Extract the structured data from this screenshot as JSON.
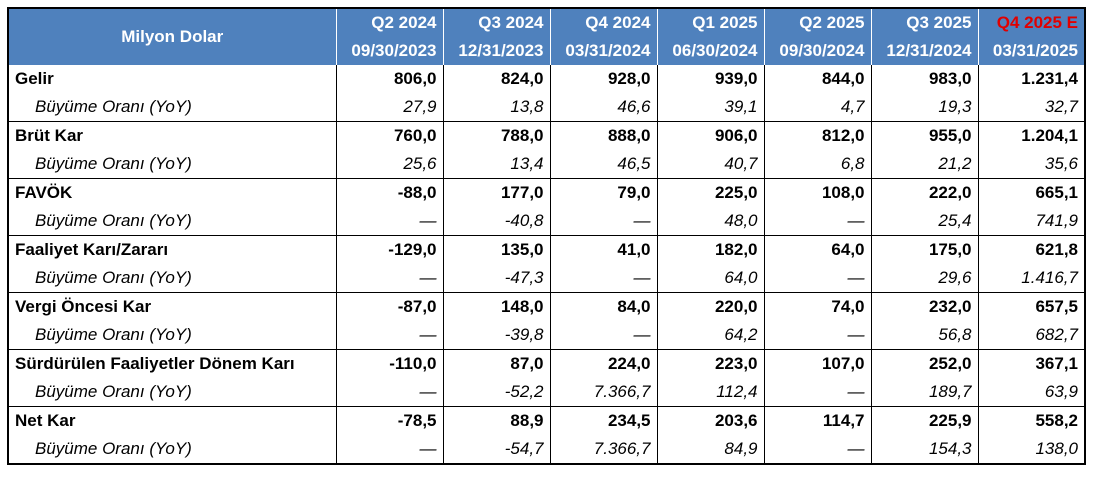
{
  "header": {
    "corner_label": "Milyon Dolar",
    "columns": [
      {
        "quarter": "Q2 2024",
        "date": "09/30/2023",
        "estimate": false
      },
      {
        "quarter": "Q3 2024",
        "date": "12/31/2023",
        "estimate": false
      },
      {
        "quarter": "Q4 2024",
        "date": "03/31/2024",
        "estimate": false
      },
      {
        "quarter": "Q1 2025",
        "date": "06/30/2024",
        "estimate": false
      },
      {
        "quarter": "Q2 2025",
        "date": "09/30/2024",
        "estimate": false
      },
      {
        "quarter": "Q3 2025",
        "date": "12/31/2024",
        "estimate": false
      },
      {
        "quarter": "Q4 2025 E",
        "date": "03/31/2025",
        "estimate": true
      }
    ],
    "estimate_color": "#e00000",
    "header_bg": "#4f81bd"
  },
  "growth_label": "Büyüme Oranı (YoY)",
  "rows": [
    {
      "label": "Gelir",
      "values": [
        "806,0",
        "824,0",
        "928,0",
        "939,0",
        "844,0",
        "983,0",
        "1.231,4"
      ],
      "growth": [
        "27,9",
        "13,8",
        "46,6",
        "39,1",
        "4,7",
        "19,3",
        "32,7"
      ]
    },
    {
      "label": "Brüt Kar",
      "values": [
        "760,0",
        "788,0",
        "888,0",
        "906,0",
        "812,0",
        "955,0",
        "1.204,1"
      ],
      "growth": [
        "25,6",
        "13,4",
        "46,5",
        "40,7",
        "6,8",
        "21,2",
        "35,6"
      ]
    },
    {
      "label": "FAVÖK",
      "values": [
        "-88,0",
        "177,0",
        "79,0",
        "225,0",
        "108,0",
        "222,0",
        "665,1"
      ],
      "growth": [
        "—",
        "-40,8",
        "—",
        "48,0",
        "—",
        "25,4",
        "741,9"
      ]
    },
    {
      "label": "Faaliyet Karı/Zararı",
      "values": [
        "-129,0",
        "135,0",
        "41,0",
        "182,0",
        "64,0",
        "175,0",
        "621,8"
      ],
      "growth": [
        "—",
        "-47,3",
        "—",
        "64,0",
        "—",
        "29,6",
        "1.416,7"
      ]
    },
    {
      "label": "Vergi Öncesi Kar",
      "values": [
        "-87,0",
        "148,0",
        "84,0",
        "220,0",
        "74,0",
        "232,0",
        "657,5"
      ],
      "growth": [
        "—",
        "-39,8",
        "—",
        "64,2",
        "—",
        "56,8",
        "682,7"
      ]
    },
    {
      "label": "Sürdürülen Faaliyetler Dönem Karı",
      "values": [
        "-110,0",
        "87,0",
        "224,0",
        "223,0",
        "107,0",
        "252,0",
        "367,1"
      ],
      "growth": [
        "—",
        "-52,2",
        "7.366,7",
        "112,4",
        "—",
        "189,7",
        "63,9"
      ]
    },
    {
      "label": "Net Kar",
      "values": [
        "-78,5",
        "88,9",
        "234,5",
        "203,6",
        "114,7",
        "225,9",
        "558,2"
      ],
      "growth": [
        "—",
        "-54,7",
        "7.366,7",
        "84,9",
        "—",
        "154,3",
        "138,0"
      ]
    }
  ]
}
